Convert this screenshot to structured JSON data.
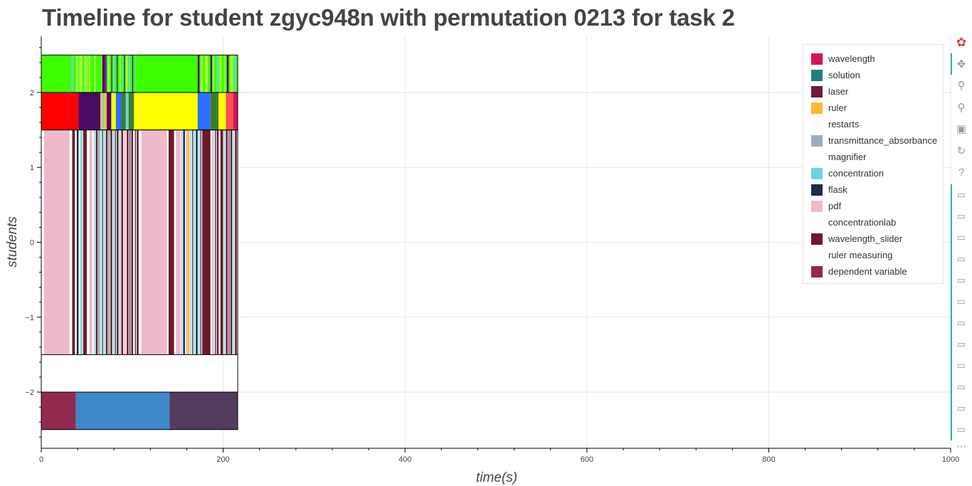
{
  "chart_data": {
    "type": "timeline",
    "title": "Timeline for student zgyc948n with permutation 0213 for task 2",
    "xlabel": "time(s)",
    "ylabel": "students",
    "xlim": [
      0,
      1000
    ],
    "ylim": [
      -2.75,
      2.75
    ],
    "xticks": [
      0,
      200,
      400,
      600,
      800,
      1000
    ],
    "xtick_labels": [
      "0",
      "200",
      "400",
      "600",
      "800",
      "1000"
    ],
    "yticks": [
      -2,
      -1,
      0,
      1,
      2
    ],
    "ytick_labels": [
      "−2",
      "−1",
      "0",
      "1",
      "2"
    ],
    "grid": true,
    "legend_position": "top-right",
    "legend": [
      {
        "label": "wavelength",
        "color": "#d6135a"
      },
      {
        "label": "solution",
        "color": "#237f7b"
      },
      {
        "label": "laser",
        "color": "#6a1d34"
      },
      {
        "label": "ruler",
        "color": "#fdb833"
      },
      {
        "label": "restarts",
        "color": ""
      },
      {
        "label": "transmittance_absorbance",
        "color": "#9eacbe"
      },
      {
        "label": "magnifier",
        "color": ""
      },
      {
        "label": "concentration",
        "color": "#6fd3dd"
      },
      {
        "label": "flask",
        "color": "#1d2c42"
      },
      {
        "label": "pdf",
        "color": "#efb9cc"
      },
      {
        "label": "concentrationlab",
        "color": ""
      },
      {
        "label": "wavelength_slider",
        "color": "#6b1a2c"
      },
      {
        "label": "ruler measuring",
        "color": ""
      },
      {
        "label": "dependent variable",
        "color": "#922a50"
      }
    ],
    "rows": [
      {
        "y0": 2.0,
        "y1": 2.5,
        "end": 216,
        "background": "#3dff00",
        "segments": [
          {
            "start": 33,
            "end": 35,
            "color": "#6fd3dd"
          },
          {
            "start": 38,
            "end": 41,
            "color": "#8cff44"
          },
          {
            "start": 42,
            "end": 45,
            "color": "#b0ff33"
          },
          {
            "start": 47,
            "end": 51,
            "color": "#8cff44"
          },
          {
            "start": 52,
            "end": 54,
            "color": "#b0ff33"
          },
          {
            "start": 58,
            "end": 60,
            "color": "#8cff44"
          },
          {
            "start": 66,
            "end": 67,
            "color": "#b0ff33"
          },
          {
            "start": 67,
            "end": 70,
            "color": "#4a0a66"
          },
          {
            "start": 70,
            "end": 72,
            "color": "#7d2fa0"
          },
          {
            "start": 73,
            "end": 75,
            "color": "#b0ff33"
          },
          {
            "start": 77,
            "end": 78,
            "color": "#4a0a66"
          },
          {
            "start": 79,
            "end": 81,
            "color": "#6fd3dd"
          },
          {
            "start": 83,
            "end": 84,
            "color": "#4a0a66"
          },
          {
            "start": 86,
            "end": 88,
            "color": "#8cff44"
          },
          {
            "start": 89,
            "end": 90,
            "color": "#6fd3dd"
          },
          {
            "start": 91,
            "end": 92,
            "color": "#4a0a66"
          },
          {
            "start": 93,
            "end": 95,
            "color": "#b0ff33"
          },
          {
            "start": 96,
            "end": 98,
            "color": "#6fd3dd"
          },
          {
            "start": 100,
            "end": 101,
            "color": "#4a0a66"
          },
          {
            "start": 103,
            "end": 104,
            "color": "#6fd3dd"
          },
          {
            "start": 172,
            "end": 174,
            "color": "#4a0a66"
          },
          {
            "start": 175,
            "end": 178,
            "color": "#8cff44"
          },
          {
            "start": 180,
            "end": 183,
            "color": "#b0ff33"
          },
          {
            "start": 186,
            "end": 188,
            "color": "#4a0a66"
          },
          {
            "start": 188,
            "end": 190,
            "color": "#8cff44"
          },
          {
            "start": 193,
            "end": 195,
            "color": "#6fd3dd"
          },
          {
            "start": 196,
            "end": 198,
            "color": "#b0ff33"
          },
          {
            "start": 201,
            "end": 203,
            "color": "#8cff44"
          },
          {
            "start": 204,
            "end": 206,
            "color": "#4a0a66"
          },
          {
            "start": 208,
            "end": 211,
            "color": "#b0ff33"
          },
          {
            "start": 212,
            "end": 214,
            "color": "#6fd3dd"
          }
        ]
      },
      {
        "y0": 1.5,
        "y1": 2.0,
        "end": 216,
        "background": "#ffffff",
        "segments": [
          {
            "start": 0,
            "end": 41,
            "color": "#ff0000"
          },
          {
            "start": 41,
            "end": 65,
            "color": "#4a0a66"
          },
          {
            "start": 65,
            "end": 67,
            "color": "#fdb833"
          },
          {
            "start": 67,
            "end": 69,
            "color": "#6fd3dd"
          },
          {
            "start": 69,
            "end": 72,
            "color": "#fdb833"
          },
          {
            "start": 72,
            "end": 77,
            "color": "#4a0a66"
          },
          {
            "start": 77,
            "end": 82,
            "color": "#ffff00"
          },
          {
            "start": 82,
            "end": 88,
            "color": "#2a6fff"
          },
          {
            "start": 88,
            "end": 93,
            "color": "#3a7d2e"
          },
          {
            "start": 93,
            "end": 96,
            "color": "#6fd3dd"
          },
          {
            "start": 96,
            "end": 102,
            "color": "#3a7d2e"
          },
          {
            "start": 102,
            "end": 172,
            "color": "#ffff00"
          },
          {
            "start": 172,
            "end": 186,
            "color": "#2a6fff"
          },
          {
            "start": 186,
            "end": 195,
            "color": "#3a7d2e"
          },
          {
            "start": 195,
            "end": 203,
            "color": "#ffff00"
          },
          {
            "start": 203,
            "end": 211,
            "color": "#ff5050"
          },
          {
            "start": 211,
            "end": 216,
            "color": "#d6135a"
          }
        ]
      },
      {
        "y0": -1.5,
        "y1": 1.5,
        "end": 216,
        "background": "#ffffff",
        "segments": [
          {
            "start": 3,
            "end": 31,
            "color": "#efb9cc"
          },
          {
            "start": 34,
            "end": 37,
            "color": "#6b1a2c"
          },
          {
            "start": 39,
            "end": 41,
            "color": "#1d2c42"
          },
          {
            "start": 43,
            "end": 45,
            "color": "#6fd3dd"
          },
          {
            "start": 46,
            "end": 50,
            "color": "#6b1a2c"
          },
          {
            "start": 53,
            "end": 56,
            "color": "#efb9cc"
          },
          {
            "start": 58,
            "end": 59,
            "color": "#6fd3dd"
          },
          {
            "start": 60,
            "end": 62,
            "color": "#6b1a2c"
          },
          {
            "start": 63,
            "end": 64,
            "color": "#237f7b"
          },
          {
            "start": 65,
            "end": 66,
            "color": "#6fd3dd"
          },
          {
            "start": 67,
            "end": 68,
            "color": "#1d2c42"
          },
          {
            "start": 69,
            "end": 70,
            "color": "#6fd3dd"
          },
          {
            "start": 71,
            "end": 73,
            "color": "#6b1a2c"
          },
          {
            "start": 74,
            "end": 75,
            "color": "#237f7b"
          },
          {
            "start": 76,
            "end": 78,
            "color": "#6b1a2c"
          },
          {
            "start": 79,
            "end": 80,
            "color": "#6fd3dd"
          },
          {
            "start": 81,
            "end": 82,
            "color": "#1d2c42"
          },
          {
            "start": 83,
            "end": 85,
            "color": "#6b1a2c"
          },
          {
            "start": 86,
            "end": 87,
            "color": "#6fd3dd"
          },
          {
            "start": 88,
            "end": 90,
            "color": "#6b1a2c"
          },
          {
            "start": 91,
            "end": 93,
            "color": "#efb9cc"
          },
          {
            "start": 94,
            "end": 96,
            "color": "#6b1a2c"
          },
          {
            "start": 97,
            "end": 98,
            "color": "#1d2c42"
          },
          {
            "start": 99,
            "end": 101,
            "color": "#6b1a2c"
          },
          {
            "start": 103,
            "end": 104,
            "color": "#1d2c42"
          },
          {
            "start": 105,
            "end": 107,
            "color": "#6b1a2c"
          },
          {
            "start": 110,
            "end": 138,
            "color": "#efb9cc"
          },
          {
            "start": 140,
            "end": 146,
            "color": "#6b1a2c"
          },
          {
            "start": 148,
            "end": 153,
            "color": "#efb9cc"
          },
          {
            "start": 154,
            "end": 155,
            "color": "#6fd3dd"
          },
          {
            "start": 156,
            "end": 158,
            "color": "#1d2c42"
          },
          {
            "start": 159,
            "end": 161,
            "color": "#efb9cc"
          },
          {
            "start": 161,
            "end": 163,
            "color": "#fdb833"
          },
          {
            "start": 164,
            "end": 165,
            "color": "#6fd3dd"
          },
          {
            "start": 166,
            "end": 167,
            "color": "#1d2c42"
          },
          {
            "start": 168,
            "end": 169,
            "color": "#6fd3dd"
          },
          {
            "start": 170,
            "end": 172,
            "color": "#1d2c42"
          },
          {
            "start": 173,
            "end": 174,
            "color": "#6fd3dd"
          },
          {
            "start": 175,
            "end": 176,
            "color": "#1d2c42"
          },
          {
            "start": 177,
            "end": 186,
            "color": "#6b1a2c"
          },
          {
            "start": 188,
            "end": 190,
            "color": "#efb9cc"
          },
          {
            "start": 191,
            "end": 192,
            "color": "#1d2c42"
          },
          {
            "start": 193,
            "end": 195,
            "color": "#6b1a2c"
          },
          {
            "start": 197,
            "end": 200,
            "color": "#6b1a2c"
          },
          {
            "start": 201,
            "end": 202,
            "color": "#6fd3dd"
          },
          {
            "start": 203,
            "end": 205,
            "color": "#6b1a2c"
          },
          {
            "start": 206,
            "end": 207,
            "color": "#1d2c42"
          },
          {
            "start": 208,
            "end": 210,
            "color": "#6b1a2c"
          },
          {
            "start": 211,
            "end": 212,
            "color": "#6fd3dd"
          },
          {
            "start": 213,
            "end": 215,
            "color": "#6b1a2c"
          }
        ]
      },
      {
        "y0": -2.5,
        "y1": -2.0,
        "end": 216,
        "background": "#ffffff",
        "segments": [
          {
            "start": 0,
            "end": 38,
            "color": "#922a50"
          },
          {
            "start": 38,
            "end": 141,
            "color": "#3e87c8"
          },
          {
            "start": 141,
            "end": 216,
            "color": "#533a5f"
          }
        ]
      }
    ]
  },
  "toolbar": {
    "items": [
      {
        "name": "bokeh-logo-icon",
        "glyph": "✿"
      },
      {
        "name": "pan-icon",
        "glyph": "✥"
      },
      {
        "name": "box-zoom-icon",
        "glyph": "⚲"
      },
      {
        "name": "wheel-zoom-icon",
        "glyph": "⚲"
      },
      {
        "name": "save-icon",
        "glyph": "▣"
      },
      {
        "name": "reset-icon",
        "glyph": "↻"
      },
      {
        "name": "help-icon",
        "glyph": "?"
      }
    ],
    "hover_glyph": "▭",
    "hover_count": 12,
    "more_glyph": "⋯"
  }
}
